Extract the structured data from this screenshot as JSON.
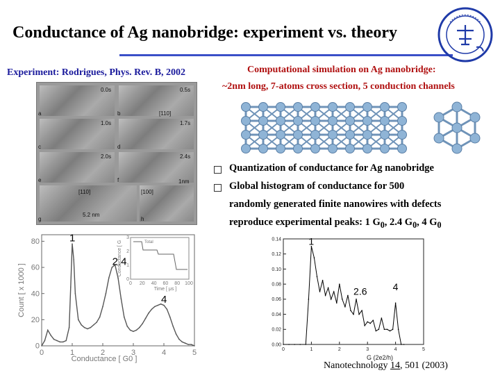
{
  "title": "Conductance of Ag nanobridge: experiment vs. theory",
  "experiment_caption": "Experiment: Rodrigues, Phys. Rev. B, 2002",
  "simulation_caption": {
    "line1": "Computational simulation on Ag nanobridge:",
    "line2": "~2nm long, 7-atoms cross section, 5 conduction channels"
  },
  "bullets": [
    {
      "lines": [
        "Quantization of conductance for Ag nanobridge"
      ]
    },
    {
      "lines": [
        "Global histogram of conductance for 500",
        "randomly generated finite nanowires with defects"
      ]
    }
  ],
  "bullet_peaks": {
    "prefix": "reproduce experimental peaks: 1 G",
    "p1": "0",
    "mid1": ", 2.4 G",
    "p2": "0",
    "mid2": ", 4 G",
    "p3": "0"
  },
  "tem_panels": {
    "labels": [
      "a",
      "b",
      "c",
      "d",
      "e",
      "f",
      "g",
      "h"
    ],
    "times": [
      "0.0s",
      "0.5s",
      "1.0s",
      "1.7s",
      "2.0s",
      "2.4s"
    ],
    "annotations": [
      "[110]",
      "[110]",
      "[100]",
      "5.2 nm",
      "1nm"
    ]
  },
  "chart_data": [
    {
      "type": "line",
      "title": "",
      "xlabel": "Conductance [ G",
      "xlabel_subscript": "0",
      "xlabel_suffix": " ]",
      "ylabel": "Count [ x 1000 ]",
      "xlim": [
        0,
        5
      ],
      "ylim": [
        0,
        85
      ],
      "xticks": [
        "0",
        "1",
        "2",
        "3",
        "4",
        "5"
      ],
      "yticks": [
        "0",
        "20",
        "40",
        "60",
        "80"
      ],
      "peak_labels": [
        {
          "label": "1",
          "x": 1.0,
          "y": 80
        },
        {
          "label": "2.4",
          "x": 2.4,
          "y": 62
        },
        {
          "label": "4",
          "x": 4.0,
          "y": 33
        }
      ],
      "x": [
        0.0,
        0.1,
        0.2,
        0.3,
        0.4,
        0.5,
        0.6,
        0.7,
        0.8,
        0.9,
        0.95,
        1.0,
        1.05,
        1.1,
        1.2,
        1.3,
        1.4,
        1.5,
        1.6,
        1.7,
        1.8,
        1.9,
        2.0,
        2.1,
        2.2,
        2.3,
        2.4,
        2.5,
        2.6,
        2.7,
        2.8,
        2.9,
        3.0,
        3.1,
        3.2,
        3.3,
        3.4,
        3.5,
        3.6,
        3.7,
        3.8,
        3.9,
        4.0,
        4.1,
        4.2,
        4.3,
        4.4,
        4.5,
        4.6,
        4.7,
        4.8,
        4.9,
        5.0
      ],
      "values": [
        0,
        4,
        12,
        8,
        5,
        4,
        3,
        3,
        4,
        14,
        45,
        78,
        66,
        40,
        20,
        16,
        14,
        13,
        14,
        16,
        18,
        22,
        30,
        40,
        52,
        60,
        62,
        52,
        36,
        22,
        15,
        12,
        11,
        12,
        14,
        17,
        21,
        25,
        28,
        30,
        31,
        32,
        31,
        28,
        22,
        15,
        9,
        5,
        3,
        2,
        1,
        1,
        0
      ],
      "inset": {
        "xlabel": "Time [ μs ]",
        "ylabel": "Conductance [ G",
        "xticks": [
          "0",
          "20",
          "40",
          "60",
          "80",
          "100"
        ],
        "yticks": [
          "0",
          "1",
          "2",
          "3"
        ],
        "top_label": "Total"
      }
    },
    {
      "type": "line",
      "title": "",
      "xlabel": "G (2e",
      "xlabel_sup": "2",
      "xlabel_suffix": "/h)",
      "ylabel": "",
      "xlim": [
        0,
        5
      ],
      "ylim": [
        0,
        0.14
      ],
      "xticks": [
        "0",
        "1",
        "2",
        "3",
        "4",
        "5"
      ],
      "yticks": [
        "0.00",
        "0.02",
        "0.04",
        "0.06",
        "0.08",
        "0.10",
        "0.12",
        "0.14"
      ],
      "peak_labels": [
        {
          "label": "1",
          "x": 1.0,
          "y": 0.132
        },
        {
          "label": "2.6",
          "x": 2.6,
          "y": 0.066
        },
        {
          "label": "4",
          "x": 4.0,
          "y": 0.072
        }
      ],
      "x": [
        0.0,
        0.2,
        0.4,
        0.6,
        0.8,
        0.9,
        1.0,
        1.1,
        1.2,
        1.3,
        1.4,
        1.5,
        1.6,
        1.7,
        1.8,
        1.9,
        2.0,
        2.1,
        2.2,
        2.3,
        2.4,
        2.5,
        2.6,
        2.7,
        2.8,
        2.9,
        3.0,
        3.1,
        3.2,
        3.3,
        3.4,
        3.5,
        3.6,
        3.7,
        3.8,
        3.9,
        4.0,
        4.1,
        4.2,
        4.3
      ],
      "values": [
        0.0,
        0.0,
        0.0,
        0.0,
        0.0,
        0.06,
        0.13,
        0.115,
        0.09,
        0.07,
        0.085,
        0.065,
        0.075,
        0.06,
        0.07,
        0.055,
        0.08,
        0.06,
        0.05,
        0.065,
        0.045,
        0.04,
        0.06,
        0.04,
        0.045,
        0.025,
        0.03,
        0.028,
        0.032,
        0.018,
        0.02,
        0.035,
        0.02,
        0.02,
        0.018,
        0.02,
        0.055,
        0.02,
        0.0,
        0.0
      ]
    }
  ],
  "citation": {
    "journal": "Nanotechnology ",
    "volume": "14",
    "rest": ", 501 (2003)"
  },
  "colors": {
    "rule": "#3a4fc8",
    "exp_caption": "#1a1a9c",
    "sim_caption": "#b01010",
    "atom": "#8fb4d6",
    "bond": "#6f93b8"
  },
  "icons": {
    "logo": "university-seal",
    "bullet": "square-bullet"
  }
}
